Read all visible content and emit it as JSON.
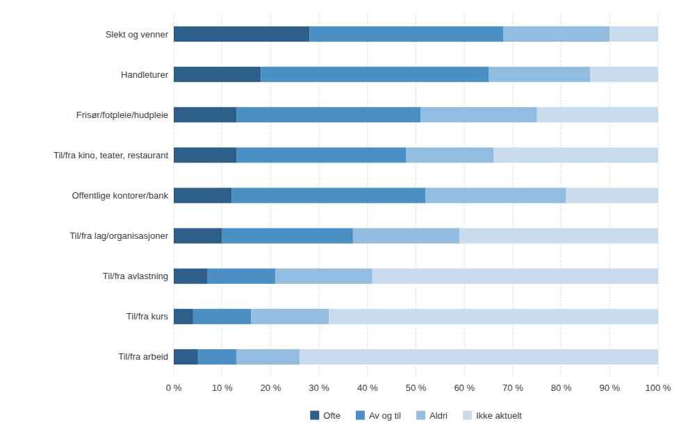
{
  "chart_data": {
    "type": "bar",
    "orientation": "horizontal",
    "stacked": true,
    "categories": [
      "Til/fra arbeid",
      "Til/fra kurs",
      "Til/fra avlastning",
      "Til/fra lag/organisasjoner",
      "Offentlige kontorer/bank",
      "Til/fra kino, teater, restaurant",
      "Frisør/fotpleie/hudpleie",
      "Handleturer",
      "Slekt og venner"
    ],
    "series": [
      {
        "name": "Ofte",
        "color": "#2E5F8A",
        "values": [
          5,
          4,
          7,
          10,
          12,
          13,
          13,
          18,
          28
        ]
      },
      {
        "name": "Av og til",
        "color": "#4A90C4",
        "values": [
          8,
          12,
          14,
          27,
          40,
          35,
          38,
          47,
          40
        ]
      },
      {
        "name": "Aldri",
        "color": "#92BDE0",
        "values": [
          13,
          16,
          20,
          22,
          29,
          18,
          24,
          21,
          22
        ]
      },
      {
        "name": "Ikke aktuelt",
        "color": "#C9DCEE",
        "values": [
          74,
          68,
          59,
          41,
          19,
          34,
          25,
          14,
          10
        ]
      }
    ],
    "xlim": [
      0,
      100
    ],
    "xticks": [
      {
        "value": 0,
        "label": "0 %"
      },
      {
        "value": 10,
        "label": "10 %"
      },
      {
        "value": 20,
        "label": "20 %"
      },
      {
        "value": 30,
        "label": "30 %"
      },
      {
        "value": 40,
        "label": "40 %"
      },
      {
        "value": 50,
        "label": "50 %"
      },
      {
        "value": 60,
        "label": "60 %"
      },
      {
        "value": 70,
        "label": "70 %"
      },
      {
        "value": 80,
        "label": "80 %"
      },
      {
        "value": 90,
        "label": "90 %"
      },
      {
        "value": 100,
        "label": "100 %"
      }
    ],
    "grid": true,
    "legend": "bottom"
  }
}
